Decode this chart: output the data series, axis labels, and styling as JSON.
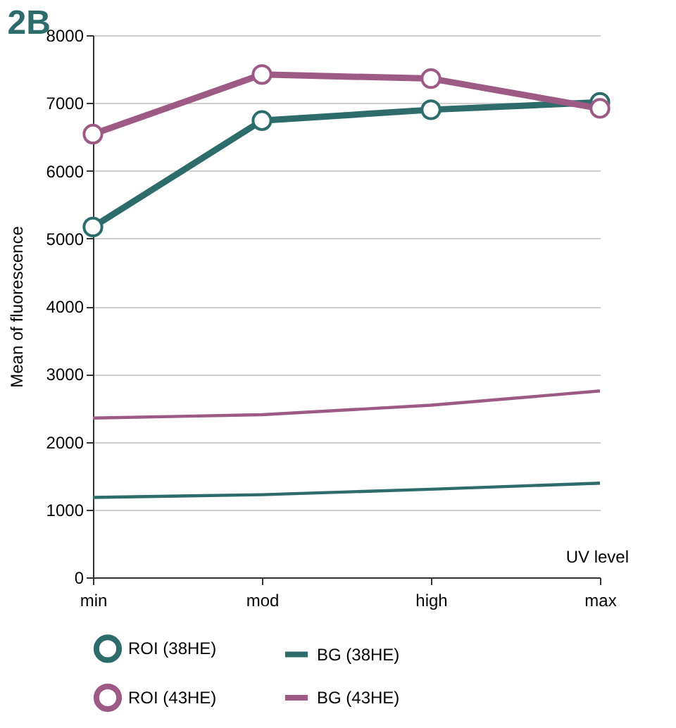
{
  "chart_data": {
    "type": "line",
    "title": "2B",
    "xlabel": "UV level",
    "ylabel": "Mean of fluorescence",
    "categories": [
      "min",
      "mod",
      "high",
      "max"
    ],
    "series": [
      {
        "name": "ROI (38HE)",
        "color": "#2e6b6b",
        "marker": "circle",
        "values": [
          5170,
          6740,
          6900,
          7010
        ]
      },
      {
        "name": "BG (38HE)",
        "color": "#2e6b6b",
        "marker": "none",
        "values": [
          1180,
          1220,
          1300,
          1390
        ]
      },
      {
        "name": "ROI (43HE)",
        "color": "#9c5a85",
        "marker": "circle",
        "values": [
          6540,
          7420,
          7360,
          6920
        ]
      },
      {
        "name": "BG (43HE)",
        "color": "#9c5a85",
        "marker": "none",
        "values": [
          2350,
          2400,
          2540,
          2750
        ]
      }
    ],
    "ylim": [
      0,
      8000
    ],
    "yticks": [
      0,
      1000,
      2000,
      3000,
      4000,
      5000,
      6000,
      7000,
      8000
    ],
    "grid": "y",
    "legend": "bottom",
    "line_style": "solid"
  }
}
